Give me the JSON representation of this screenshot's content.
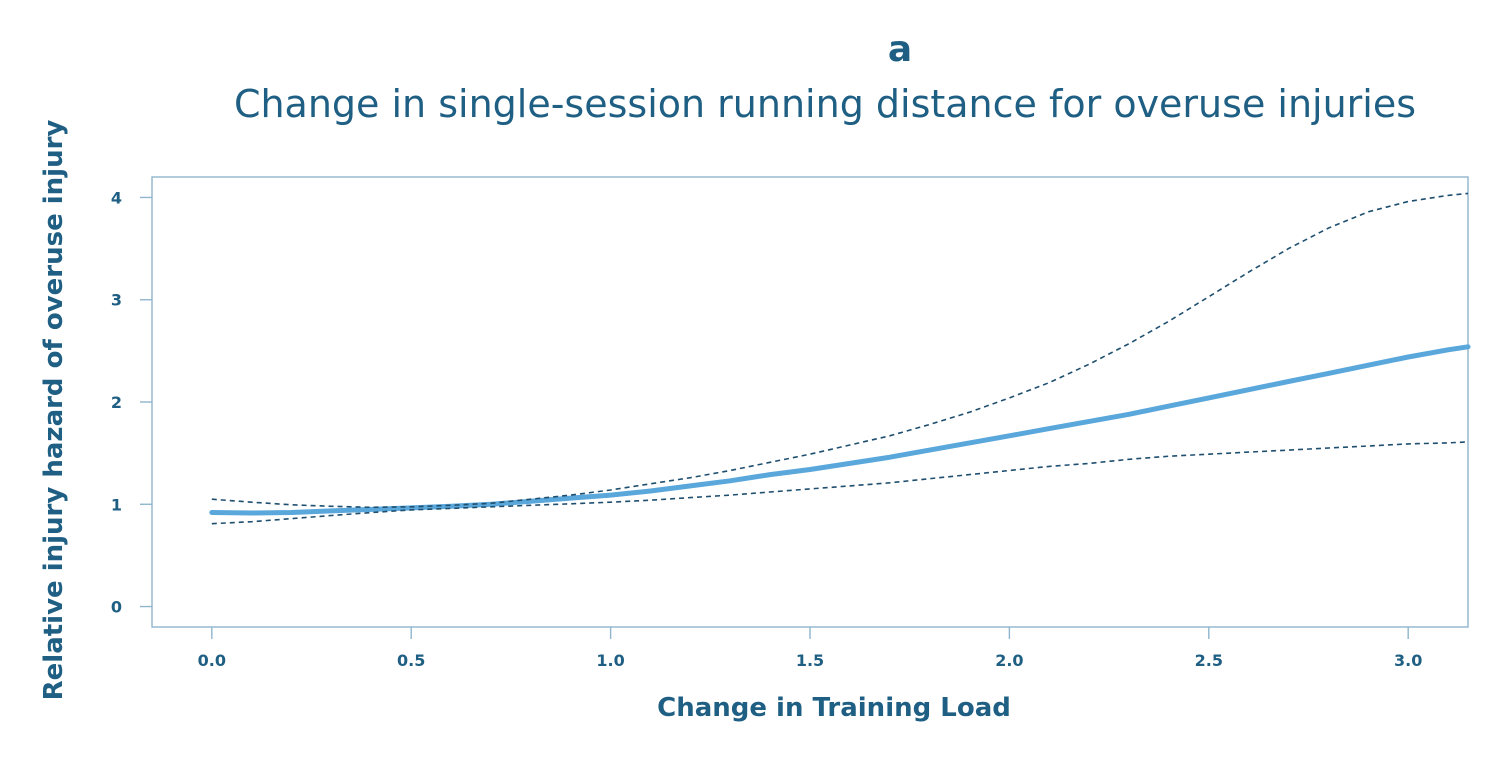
{
  "panel_label": "a",
  "chart_data": {
    "type": "line",
    "title": "Change in single-session running distance for overuse injuries",
    "xlabel": "Change in Training Load",
    "ylabel": "Relative injury hazard of overuse injury",
    "xlim": [
      -0.15,
      3.15
    ],
    "ylim": [
      -0.2,
      4.2
    ],
    "xticks": [
      0.0,
      0.5,
      1.0,
      1.5,
      2.0,
      2.5,
      3.0
    ],
    "xtick_labels": [
      "0.0",
      "0.5",
      "1.0",
      "1.5",
      "2.0",
      "2.5",
      "3.0"
    ],
    "yticks": [
      0,
      1,
      2,
      3,
      4
    ],
    "ytick_labels": [
      "0",
      "1",
      "2",
      "3",
      "4"
    ],
    "grid": false,
    "line_color": "#5aa7dc",
    "text_color": "#1f5f83",
    "series": [
      {
        "style": "solid",
        "x": [
          0.0,
          0.1,
          0.2,
          0.3,
          0.4,
          0.5,
          0.6,
          0.7,
          0.8,
          0.9,
          1.0,
          1.1,
          1.2,
          1.3,
          1.4,
          1.5,
          1.6,
          1.7,
          1.8,
          1.9,
          2.0,
          2.1,
          2.2,
          2.3,
          2.4,
          2.5,
          2.6,
          2.7,
          2.8,
          2.9,
          3.0,
          3.1,
          3.15
        ],
        "y": [
          0.92,
          0.915,
          0.92,
          0.935,
          0.95,
          0.965,
          0.98,
          1.0,
          1.03,
          1.06,
          1.09,
          1.13,
          1.18,
          1.23,
          1.29,
          1.34,
          1.4,
          1.46,
          1.53,
          1.6,
          1.67,
          1.74,
          1.81,
          1.88,
          1.96,
          2.04,
          2.12,
          2.2,
          2.28,
          2.36,
          2.44,
          2.51,
          2.54
        ]
      },
      {
        "style": "dashed",
        "x": [
          0.0,
          0.1,
          0.2,
          0.3,
          0.4,
          0.5,
          0.6,
          0.7,
          0.8,
          0.9,
          1.0,
          1.1,
          1.2,
          1.3,
          1.4,
          1.5,
          1.6,
          1.7,
          1.8,
          1.9,
          2.0,
          2.1,
          2.2,
          2.3,
          2.4,
          2.5,
          2.6,
          2.7,
          2.8,
          2.9,
          3.0,
          3.1,
          3.15
        ],
        "y": [
          1.05,
          1.02,
          0.995,
          0.98,
          0.97,
          0.975,
          0.99,
          1.01,
          1.05,
          1.09,
          1.14,
          1.2,
          1.26,
          1.33,
          1.41,
          1.49,
          1.58,
          1.67,
          1.78,
          1.9,
          2.04,
          2.19,
          2.37,
          2.57,
          2.79,
          3.03,
          3.27,
          3.5,
          3.7,
          3.86,
          3.96,
          4.02,
          4.04
        ]
      },
      {
        "style": "dashed",
        "x": [
          0.0,
          0.1,
          0.2,
          0.3,
          0.4,
          0.5,
          0.6,
          0.7,
          0.8,
          0.9,
          1.0,
          1.1,
          1.2,
          1.3,
          1.4,
          1.5,
          1.6,
          1.7,
          1.8,
          1.9,
          2.0,
          2.1,
          2.2,
          2.3,
          2.4,
          2.5,
          2.6,
          2.7,
          2.8,
          2.9,
          3.0,
          3.1,
          3.15
        ],
        "y": [
          0.81,
          0.83,
          0.86,
          0.89,
          0.92,
          0.945,
          0.96,
          0.975,
          0.99,
          1.005,
          1.02,
          1.04,
          1.065,
          1.09,
          1.12,
          1.15,
          1.18,
          1.21,
          1.25,
          1.29,
          1.33,
          1.37,
          1.4,
          1.44,
          1.47,
          1.49,
          1.51,
          1.53,
          1.55,
          1.57,
          1.59,
          1.6,
          1.61
        ]
      }
    ]
  }
}
